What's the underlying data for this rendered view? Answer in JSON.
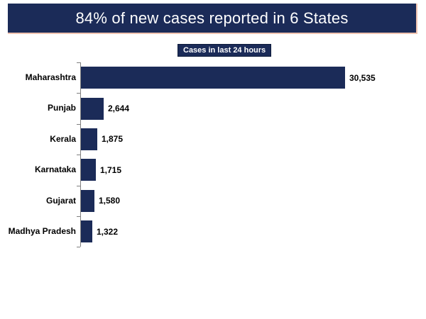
{
  "page": {
    "background": "#ffffff"
  },
  "header": {
    "title": "84% of new cases reported in 6 States",
    "bg_color": "#1b2b58",
    "text_color": "#ffffff",
    "shadow_color": "#f0c3b0"
  },
  "legend": {
    "label": "Cases in last 24 hours",
    "bg_color": "#1b2b58",
    "text_color": "#ffffff",
    "border_color": "#0d1a3a"
  },
  "chart_data": {
    "type": "bar",
    "orientation": "horizontal",
    "title": "84% of new cases reported in 6 States",
    "legend": "Cases in last 24 hours",
    "legend_position": "top-center",
    "categories": [
      "Maharashtra",
      "Punjab",
      "Kerala",
      "Karnataka",
      "Gujarat",
      "Madhya Pradesh"
    ],
    "values": [
      30535,
      2644,
      1875,
      1715,
      1580,
      1322
    ],
    "value_labels": [
      "30,535",
      "2,644",
      "1,875",
      "1,715",
      "1,580",
      "1,322"
    ],
    "xlim": [
      0,
      30535
    ],
    "grid": false,
    "bar_color": "#1b2b58",
    "axis_color": "#7f7f7f",
    "label_color": "#000000"
  }
}
